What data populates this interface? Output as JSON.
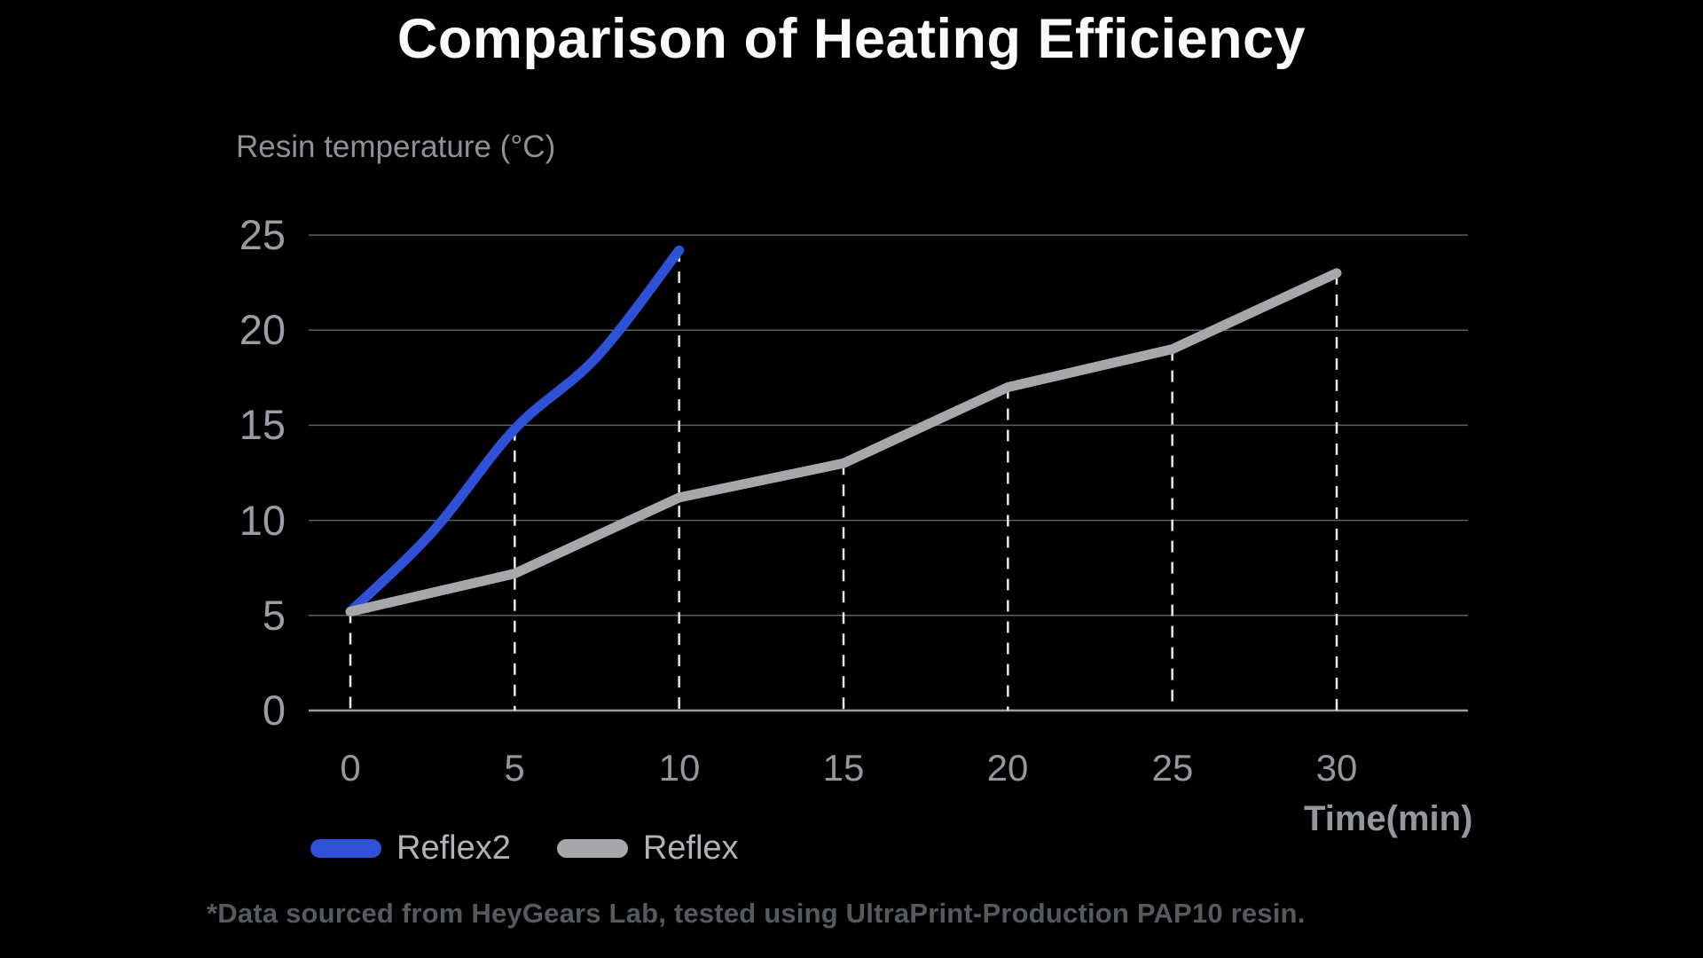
{
  "page": {
    "background": "#000000"
  },
  "title": "Comparison of Heating Efficiency",
  "footnote": "*Data sourced from HeyGears Lab, tested using UltraPrint-Production PAP10 resin.",
  "colors": {
    "background": "#000000",
    "title_text": "#fbfbfb",
    "axis_title_text": "#8e9197",
    "tick_label_text": "#94979d",
    "legend_label_text": "#b0b3b8",
    "footnote_text": "#56595e",
    "gridline": "#5d6065",
    "zero_axis_line": "#9a9da1",
    "dropline": "#e8e9ea",
    "reflex2_blue": "#2f51d8",
    "reflex_gray": "#a6a8ab"
  },
  "chart_data": {
    "type": "line",
    "title": "Comparison of Heating Efficiency",
    "xlabel": "Time(min)",
    "ylabel": "Resin temperature (°C)",
    "xlim": [
      0,
      30
    ],
    "ylim": [
      0,
      25
    ],
    "xticks": [
      0,
      5,
      10,
      15,
      20,
      25,
      30
    ],
    "yticks": [
      0,
      5,
      10,
      15,
      20,
      25
    ],
    "grid": "horizontal gridlines at every y tick; brighter solid baseline at y=0",
    "droplines": "white dashed vertical line at every x tick from the topmost series point down to y=0",
    "legend_position": "bottom-left",
    "series": [
      {
        "name": "Reflex2",
        "color": "#2f51d8",
        "smooth": true,
        "x": [
          0,
          2.5,
          5,
          7.5,
          10
        ],
        "y": [
          5.2,
          9.4,
          14.8,
          18.6,
          24.2
        ]
      },
      {
        "name": "Reflex",
        "color": "#a6a8ab",
        "smooth": false,
        "x": [
          0,
          5,
          10,
          15,
          20,
          25,
          30
        ],
        "y": [
          5.2,
          7.2,
          11.2,
          13,
          17,
          19,
          23
        ]
      }
    ]
  }
}
